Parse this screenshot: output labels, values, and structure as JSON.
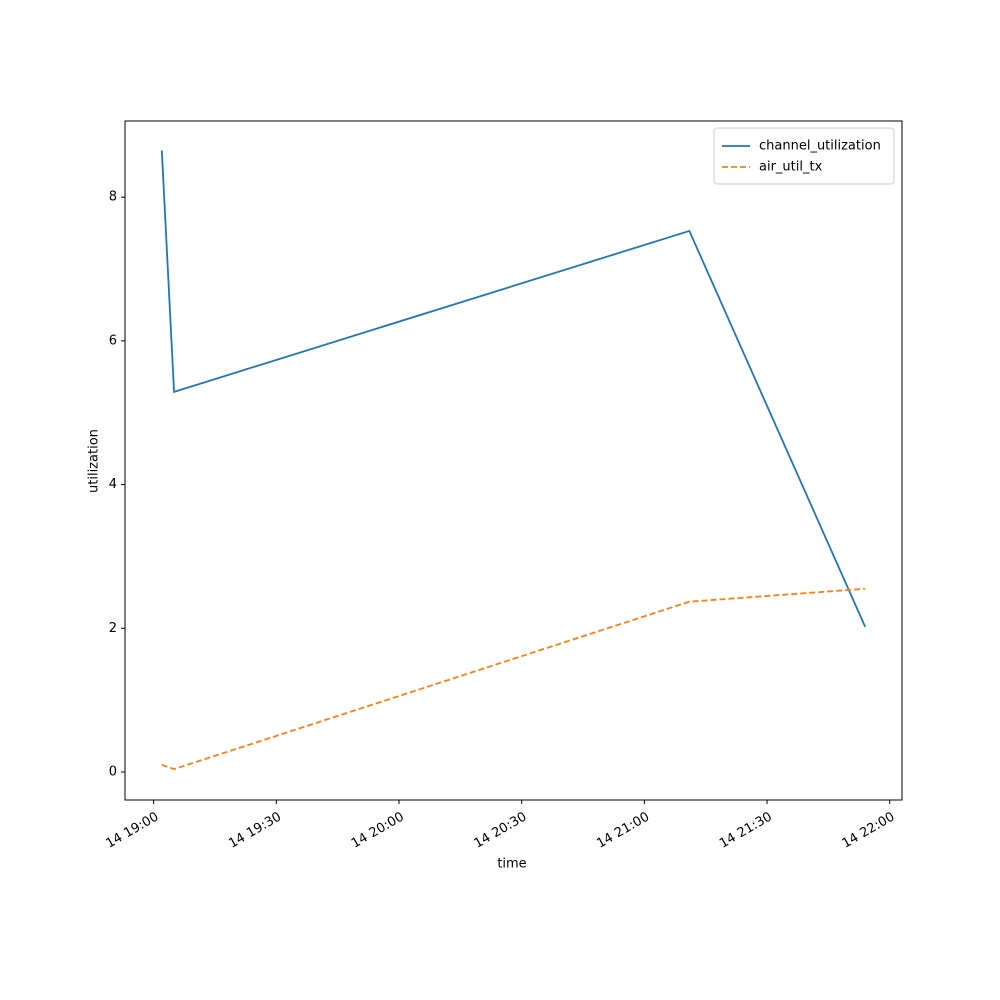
{
  "chart_data": {
    "type": "line",
    "x_label": "time",
    "y_label": "utilization",
    "x": [
      "14 19:02",
      "14 19:05",
      "14 21:11",
      "14 21:54"
    ],
    "series": [
      {
        "name": "channel_utilization",
        "color": "#1f77b4",
        "dash": "solid",
        "values": [
          8.65,
          5.29,
          7.53,
          2.02
        ]
      },
      {
        "name": "air_util_tx",
        "color": "#ff7f0e",
        "dash": "dashed",
        "values": [
          0.1,
          0.04,
          2.37,
          2.55
        ]
      }
    ],
    "xlim": [
      "14 18:53",
      "14 22:03"
    ],
    "xticks": [
      "14 19:00",
      "14 19:30",
      "14 20:00",
      "14 20:30",
      "14 21:00",
      "14 21:30",
      "14 22:00"
    ],
    "ylim": [
      -0.39,
      9.06
    ],
    "yticks": [
      0,
      2,
      4,
      6,
      8
    ],
    "legend": "upper right",
    "grid": false
  }
}
